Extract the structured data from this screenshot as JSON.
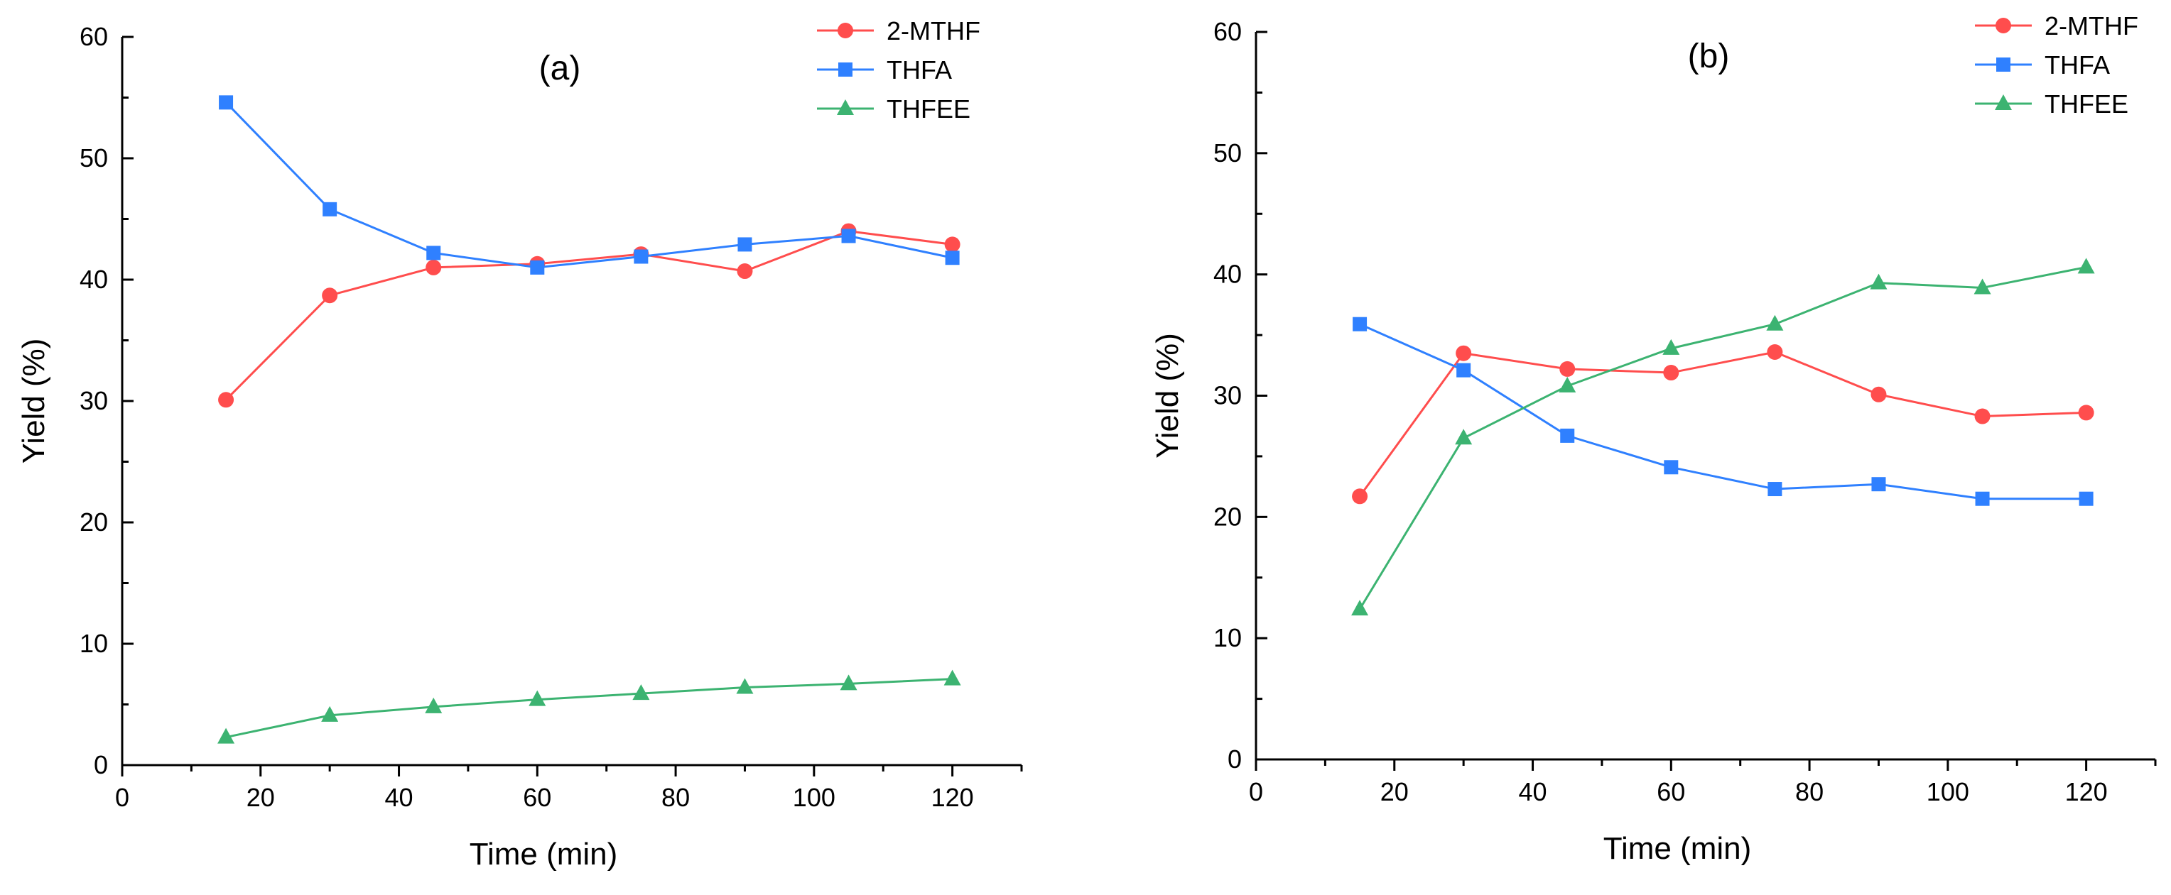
{
  "chart_data": [
    {
      "type": "line",
      "title": "(a)",
      "xlabel": "Time (min)",
      "ylabel": "Yield (%)",
      "xlim": [
        0,
        130
      ],
      "ylim": [
        0,
        60
      ],
      "xticks": [
        "0",
        "20",
        "40",
        "60",
        "80",
        "100",
        "120"
      ],
      "yticks": [
        "0",
        "10",
        "20",
        "30",
        "40",
        "50",
        "60"
      ],
      "legend_position": "top-right",
      "x": [
        15,
        30,
        45,
        60,
        75,
        90,
        105,
        120
      ],
      "series": [
        {
          "name": "2-MTHF",
          "color": "#ff4d4d",
          "marker": "circle",
          "values": [
            30.1,
            38.7,
            41.0,
            41.3,
            42.1,
            40.7,
            44.0,
            42.9
          ]
        },
        {
          "name": "THFA",
          "color": "#2f80ff",
          "marker": "square",
          "values": [
            54.6,
            45.8,
            42.2,
            41.0,
            41.9,
            42.9,
            43.6,
            41.8
          ]
        },
        {
          "name": "THFEE",
          "color": "#3cb371",
          "marker": "triangle",
          "values": [
            2.3,
            4.1,
            4.8,
            5.4,
            5.9,
            6.4,
            6.7,
            7.1
          ]
        }
      ]
    },
    {
      "type": "line",
      "title": "(b)",
      "xlabel": "Time (min)",
      "ylabel": "Yield (%)",
      "xlim": [
        0,
        130
      ],
      "ylim": [
        0,
        60
      ],
      "xticks": [
        "0",
        "20",
        "40",
        "60",
        "80",
        "100",
        "120"
      ],
      "yticks": [
        "0",
        "10",
        "20",
        "30",
        "40",
        "50",
        "60"
      ],
      "legend_position": "top-right",
      "x": [
        15,
        30,
        45,
        60,
        75,
        90,
        105,
        120
      ],
      "series": [
        {
          "name": "2-MTHF",
          "color": "#ff4d4d",
          "marker": "circle",
          "values": [
            21.7,
            33.5,
            32.2,
            31.9,
            33.6,
            30.1,
            28.3,
            28.6
          ]
        },
        {
          "name": "THFA",
          "color": "#2f80ff",
          "marker": "square",
          "values": [
            35.9,
            32.1,
            26.7,
            24.1,
            22.3,
            22.7,
            21.5,
            21.5
          ]
        },
        {
          "name": "THFEE",
          "color": "#3cb371",
          "marker": "triangle",
          "values": [
            12.4,
            26.5,
            30.8,
            33.9,
            35.9,
            39.3,
            38.9,
            40.6
          ]
        }
      ]
    }
  ]
}
